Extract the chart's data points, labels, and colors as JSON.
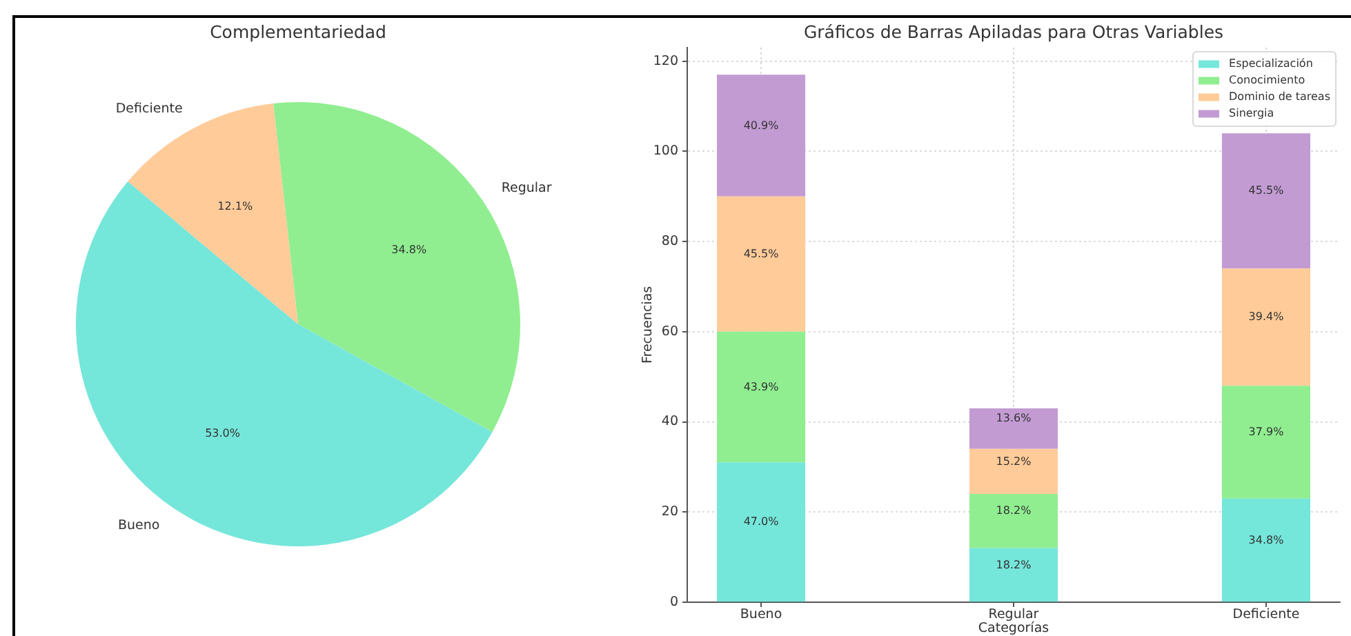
{
  "chart_data": [
    {
      "type": "pie",
      "title": "Complementariedad",
      "categories": [
        "Regular",
        "Bueno",
        "Deficiente"
      ],
      "values": [
        34.8,
        53.0,
        12.1
      ],
      "colors": [
        "#90ee90",
        "#75e6da",
        "#ffcb99"
      ],
      "value_labels": [
        "34.8%",
        "53.0%",
        "12.1%"
      ]
    },
    {
      "type": "bar",
      "title": "Gráficos de Barras Apiladas para Otras Variables",
      "xlabel": "Categorías",
      "ylabel": "Frecuencias",
      "categories": [
        "Bueno",
        "Regular",
        "Deficiente"
      ],
      "stacked": true,
      "series": [
        {
          "name": "Especialización",
          "color": "#75e6da",
          "values": [
            31,
            12,
            23
          ]
        },
        {
          "name": "Conocimiento",
          "color": "#90ee90",
          "values": [
            29,
            12,
            25
          ]
        },
        {
          "name": "Dominio de tareas",
          "color": "#ffcb99",
          "values": [
            30,
            10,
            26
          ]
        },
        {
          "name": "Sinergia",
          "color": "#c39bd3",
          "values": [
            27,
            9,
            30
          ]
        }
      ],
      "annotations": [
        "47.0%",
        "18.2%",
        "34.8%",
        "43.9%",
        "18.2%",
        "37.9%",
        "45.5%",
        "15.2%",
        "39.4%",
        "40.9%",
        "13.6%",
        "45.5%"
      ],
      "ylim": [
        0,
        123
      ],
      "yticks": [
        0,
        20,
        40,
        60,
        80,
        100,
        120
      ],
      "grid": true,
      "legend": "top right"
    }
  ]
}
